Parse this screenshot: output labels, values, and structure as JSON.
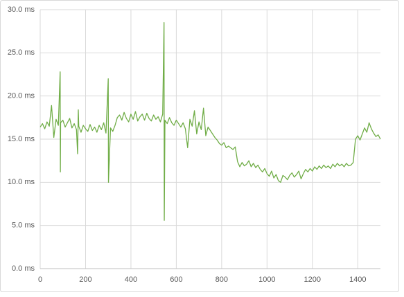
{
  "chart_data": {
    "type": "line",
    "x": [
      0,
      10,
      20,
      30,
      40,
      50,
      60,
      70,
      80,
      88,
      89,
      90,
      100,
      110,
      120,
      130,
      140,
      150,
      160,
      165,
      168,
      170,
      180,
      190,
      200,
      210,
      220,
      230,
      240,
      250,
      260,
      270,
      280,
      290,
      300,
      301,
      310,
      320,
      330,
      340,
      350,
      360,
      370,
      380,
      390,
      400,
      410,
      420,
      430,
      440,
      450,
      460,
      470,
      480,
      490,
      500,
      510,
      520,
      530,
      540,
      546,
      547,
      550,
      560,
      570,
      580,
      590,
      600,
      610,
      620,
      630,
      640,
      650,
      660,
      670,
      680,
      690,
      700,
      710,
      720,
      730,
      740,
      750,
      760,
      770,
      780,
      790,
      800,
      810,
      820,
      830,
      840,
      850,
      860,
      870,
      880,
      890,
      900,
      910,
      920,
      930,
      940,
      950,
      960,
      970,
      980,
      990,
      1000,
      1010,
      1020,
      1030,
      1040,
      1050,
      1060,
      1070,
      1080,
      1090,
      1100,
      1110,
      1120,
      1130,
      1140,
      1150,
      1160,
      1170,
      1180,
      1190,
      1200,
      1210,
      1220,
      1230,
      1240,
      1250,
      1260,
      1270,
      1280,
      1290,
      1300,
      1310,
      1320,
      1330,
      1340,
      1350,
      1360,
      1370,
      1380,
      1390,
      1400,
      1410,
      1420,
      1430,
      1440,
      1450,
      1460,
      1470,
      1480,
      1490,
      1500
    ],
    "values": [
      16.4,
      16.8,
      16.2,
      17.0,
      16.5,
      18.9,
      15.2,
      17.3,
      16.6,
      22.8,
      11.2,
      16.9,
      17.2,
      16.4,
      16.9,
      17.4,
      16.3,
      16.8,
      16.1,
      13.3,
      18.4,
      16.5,
      15.8,
      16.6,
      16.2,
      15.9,
      16.7,
      16.0,
      16.4,
      15.8,
      16.6,
      16.1,
      16.9,
      15.7,
      22.0,
      10.0,
      16.3,
      15.9,
      16.6,
      17.5,
      17.8,
      17.2,
      18.1,
      17.4,
      17.0,
      17.9,
      17.3,
      18.2,
      17.1,
      17.6,
      17.9,
      17.2,
      18.0,
      17.4,
      17.1,
      17.8,
      17.3,
      17.6,
      17.0,
      17.9,
      28.5,
      5.6,
      17.2,
      16.8,
      17.5,
      16.9,
      16.6,
      17.2,
      16.8,
      16.4,
      16.9,
      16.2,
      14.0,
      17.3,
      16.5,
      18.3,
      15.6,
      17.0,
      16.1,
      18.6,
      15.4,
      16.4,
      16.0,
      15.6,
      15.2,
      14.9,
      14.5,
      14.3,
      14.6,
      14.0,
      14.2,
      14.0,
      13.8,
      14.1,
      12.4,
      11.8,
      12.3,
      11.9,
      12.1,
      12.5,
      11.8,
      12.2,
      11.7,
      12.0,
      11.5,
      11.2,
      11.6,
      11.0,
      10.7,
      11.3,
      10.5,
      10.9,
      10.2,
      10.0,
      10.8,
      10.6,
      10.3,
      10.8,
      11.1,
      10.6,
      10.9,
      11.3,
      10.4,
      11.0,
      11.5,
      11.2,
      11.6,
      11.3,
      11.8,
      11.5,
      11.9,
      11.6,
      12.0,
      11.7,
      11.9,
      11.6,
      12.1,
      11.8,
      12.2,
      11.9,
      12.1,
      11.8,
      12.2,
      11.9,
      12.0,
      12.3,
      15.0,
      15.4,
      14.9,
      15.6,
      16.3,
      15.8,
      16.9,
      16.2,
      15.7,
      15.3,
      15.5,
      15.0
    ],
    "color": "#70ad47",
    "xlim": [
      0,
      1500
    ],
    "xticks": [
      0,
      200,
      400,
      600,
      800,
      1000,
      1200,
      1400
    ],
    "ylim": [
      0,
      30
    ],
    "yticks": [
      {
        "value": 0,
        "label": "0.0 ms"
      },
      {
        "value": 5,
        "label": "5.0 ms"
      },
      {
        "value": 10,
        "label": "10.0 ms"
      },
      {
        "value": 15,
        "label": "15.0 ms"
      },
      {
        "value": 20,
        "label": "20.0 ms"
      },
      {
        "value": 25,
        "label": "25.0 ms"
      },
      {
        "value": 30,
        "label": "30.0 ms"
      }
    ],
    "grid": true
  }
}
